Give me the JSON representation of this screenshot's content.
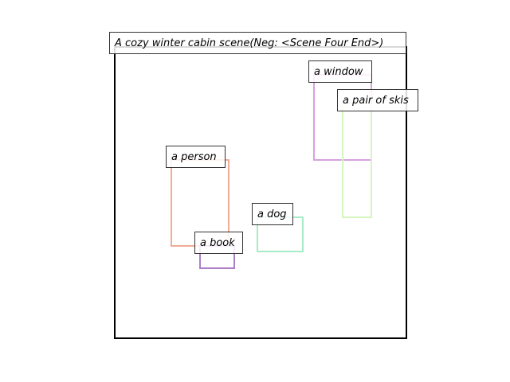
{
  "scene": {
    "title": "A cozy winter cabin scene(Neg: <Scene Four End>)",
    "objects": [
      {
        "label": "a window",
        "color": "#d9a0e0"
      },
      {
        "label": "a pair of skis",
        "color": "#d6f5c0"
      },
      {
        "label": "a person",
        "color": "#f2ab96"
      },
      {
        "label": "a dog",
        "color": "#a6ecc6"
      },
      {
        "label": "a book",
        "color": "#ad7fc6"
      }
    ]
  }
}
